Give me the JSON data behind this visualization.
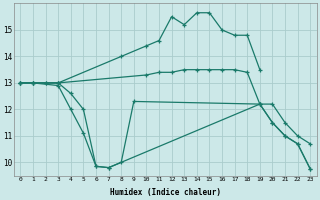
{
  "xlabel": "Humidex (Indice chaleur)",
  "bg_color": "#cce8e8",
  "grid_color": "#aacccc",
  "line_color": "#1a7a6a",
  "xlim": [
    -0.5,
    23.5
  ],
  "ylim": [
    9.5,
    16.0
  ],
  "xtick_labels": [
    "0",
    "1",
    "2",
    "3",
    "4",
    "5",
    "6",
    "7",
    "8",
    "9",
    "10",
    "11",
    "12",
    "13",
    "14",
    "15",
    "16",
    "17",
    "18",
    "19",
    "20",
    "21",
    "22",
    "23"
  ],
  "ytick_vals": [
    10,
    11,
    12,
    13,
    14,
    15
  ],
  "series": [
    {
      "x": [
        0,
        1,
        2,
        3,
        8,
        10,
        11,
        12,
        13,
        14,
        15,
        16,
        17,
        18,
        19
      ],
      "y": [
        13,
        13,
        13,
        13,
        14.0,
        14.4,
        14.6,
        15.5,
        15.2,
        15.65,
        15.65,
        15.0,
        14.8,
        14.8,
        13.5
      ]
    },
    {
      "x": [
        0,
        1,
        2,
        3,
        10,
        11,
        12,
        13,
        14,
        15,
        16,
        17,
        18,
        19,
        20,
        21,
        22,
        23
      ],
      "y": [
        13,
        13,
        13,
        13,
        13.3,
        13.4,
        13.4,
        13.5,
        13.5,
        13.5,
        13.5,
        13.5,
        13.4,
        12.2,
        12.2,
        11.5,
        11.0,
        10.7
      ]
    },
    {
      "x": [
        0,
        1,
        3,
        4,
        5,
        6,
        7,
        8,
        9,
        19,
        20,
        21,
        22,
        23
      ],
      "y": [
        13,
        13,
        12.9,
        12.0,
        11.1,
        9.85,
        9.8,
        10.0,
        12.3,
        12.2,
        11.5,
        11.0,
        10.7,
        9.75
      ]
    },
    {
      "x": [
        0,
        1,
        3,
        4,
        5,
        6,
        7,
        19,
        20,
        21,
        22,
        23
      ],
      "y": [
        13,
        13,
        13,
        12.6,
        12.0,
        9.85,
        9.8,
        12.2,
        11.5,
        11.0,
        10.7,
        9.75
      ]
    }
  ]
}
